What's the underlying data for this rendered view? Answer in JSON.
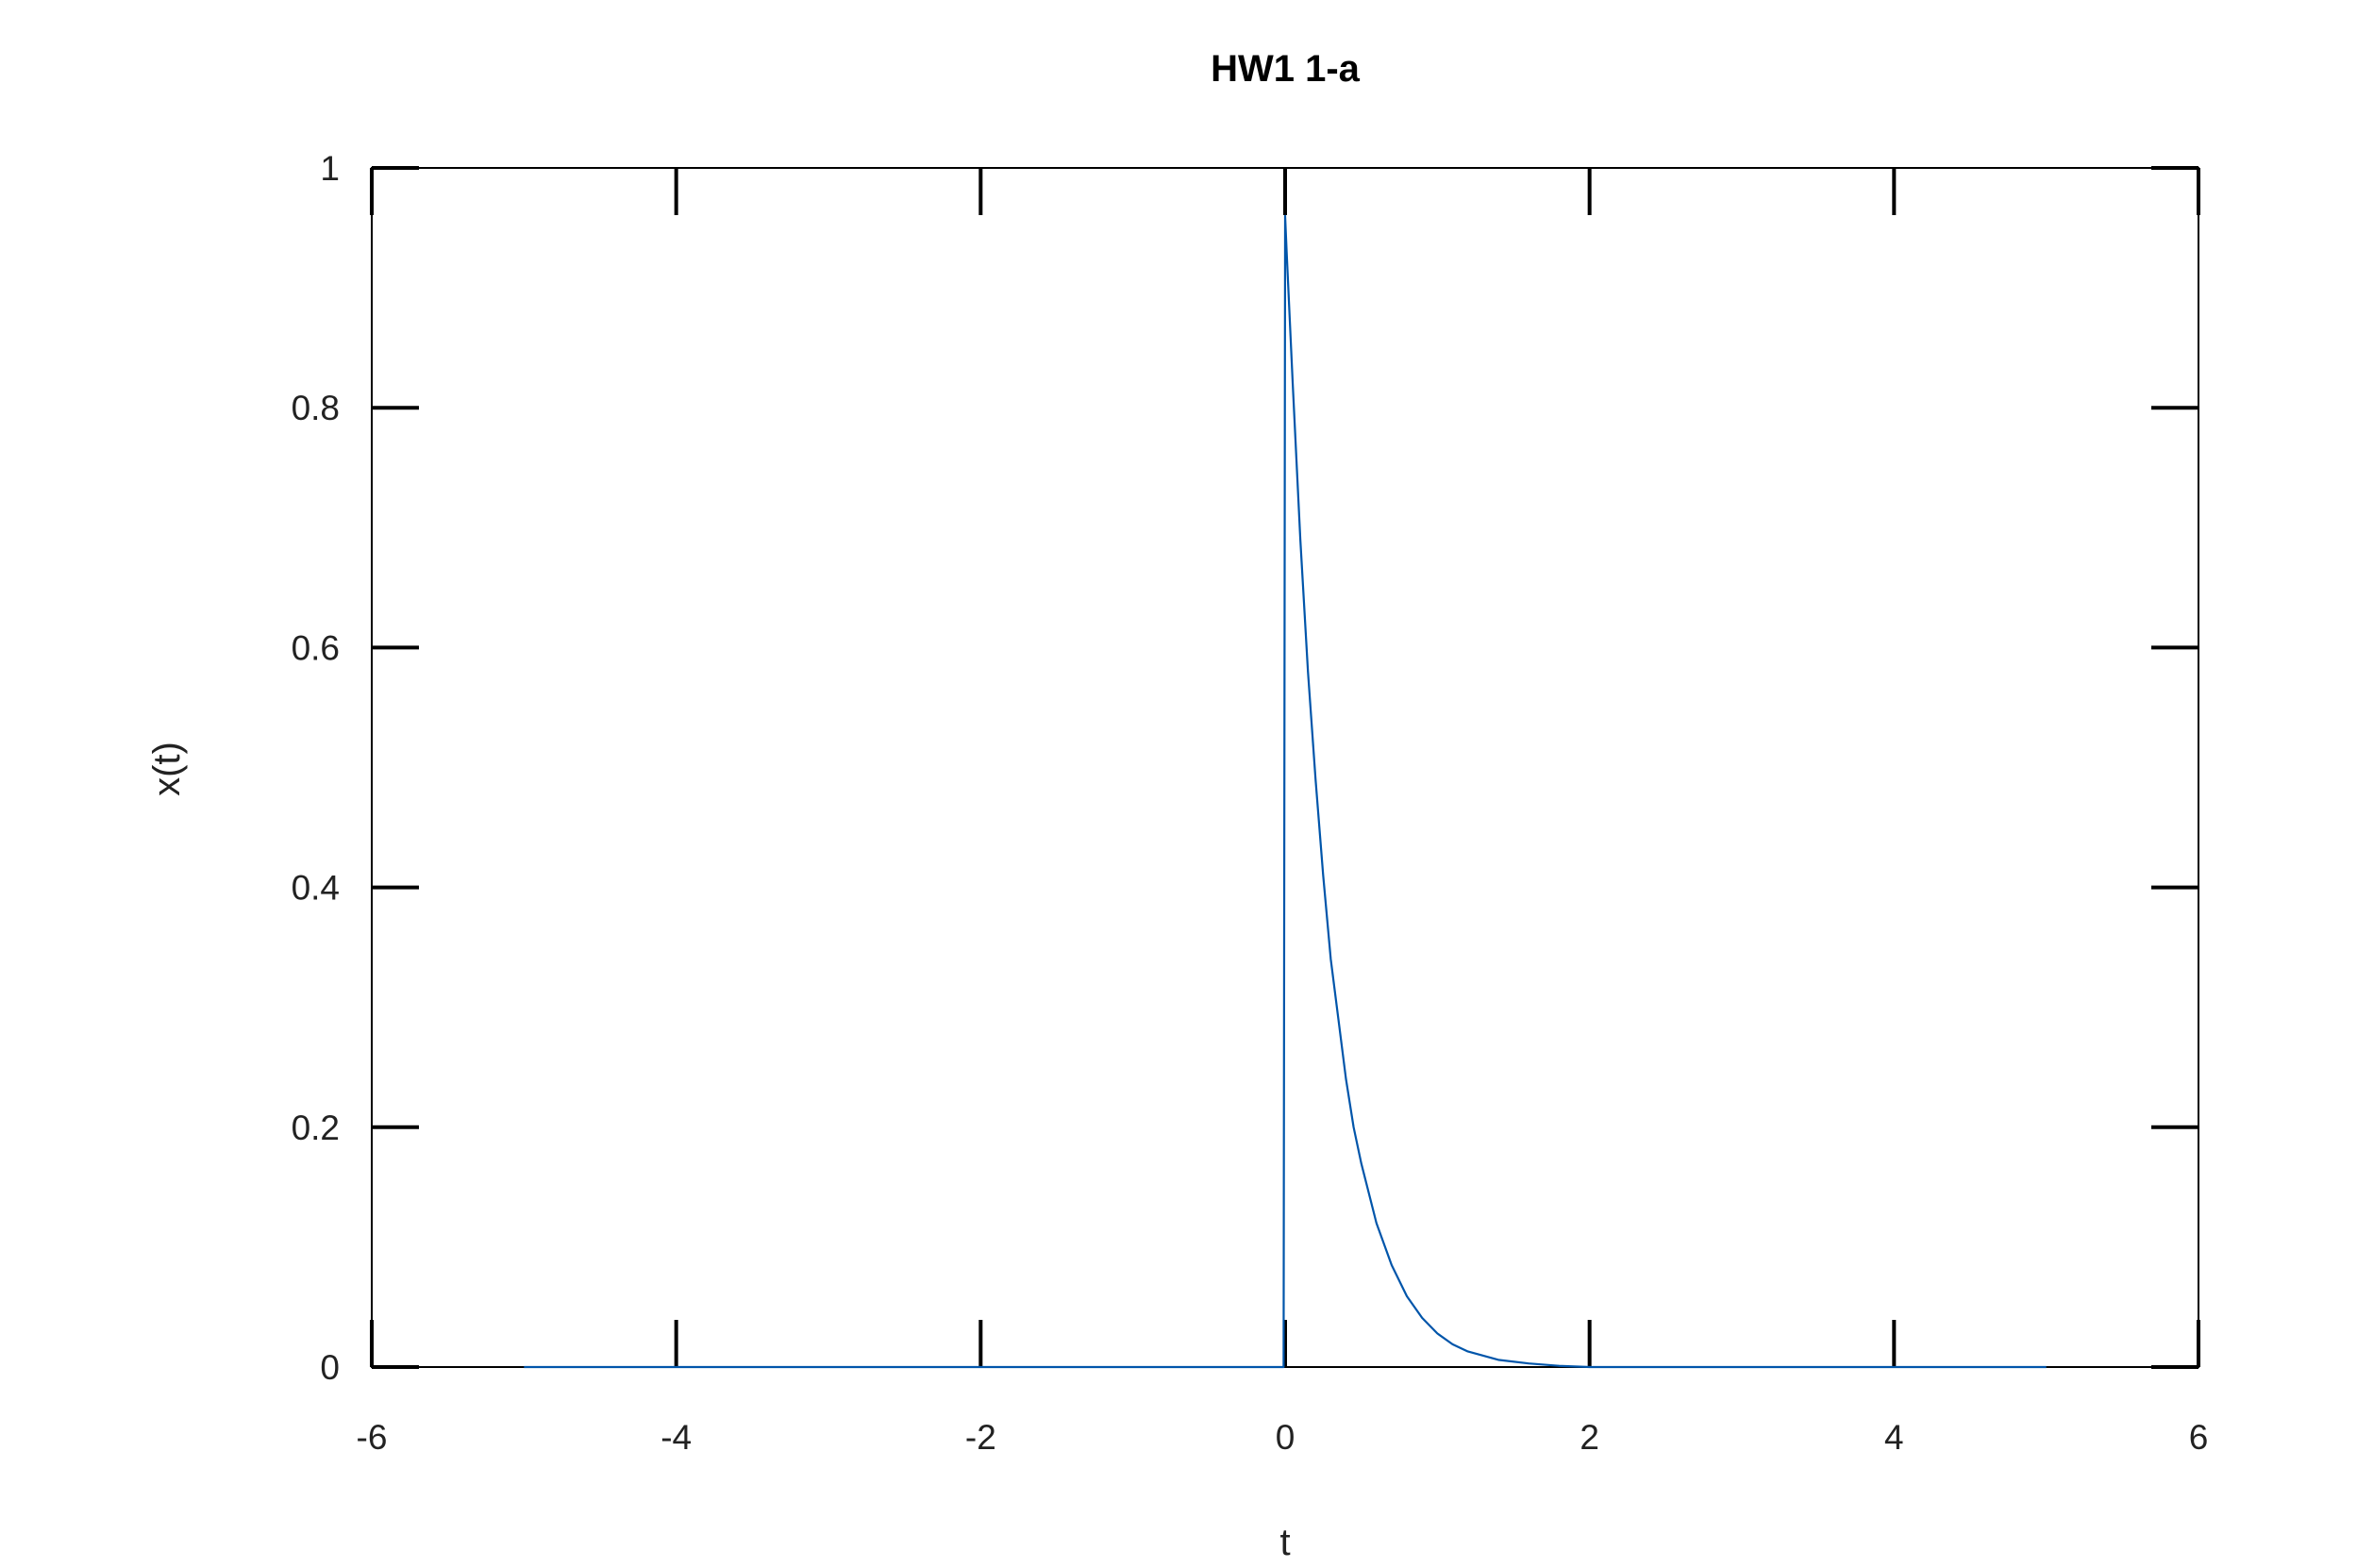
{
  "chart_data": {
    "type": "line",
    "title": "HW1 1-a",
    "xlabel": "t",
    "ylabel": "x(t)",
    "xlim": [
      -6,
      6
    ],
    "ylim": [
      0,
      1
    ],
    "xticks": [
      -6,
      -4,
      -2,
      0,
      2,
      4,
      6
    ],
    "xtick_labels": [
      "-6",
      "-4",
      "-2",
      "0",
      "2",
      "4",
      "6"
    ],
    "yticks": [
      0,
      0.2,
      0.4,
      0.6,
      0.8,
      1
    ],
    "ytick_labels": [
      "0",
      "0.2",
      "0.4",
      "0.6",
      "0.8",
      "1"
    ],
    "grid": false,
    "legend": "none",
    "series": [
      {
        "color": "#0055aa",
        "x": [
          -5,
          -4,
          -3,
          -2,
          -1,
          -0.01,
          0,
          0.01,
          0.05,
          0.1,
          0.15,
          0.2,
          0.25,
          0.3,
          0.35,
          0.4,
          0.45,
          0.5,
          0.6,
          0.7,
          0.8,
          0.9,
          1.0,
          1.1,
          1.2,
          1.4,
          1.6,
          1.8,
          2,
          2.5,
          3,
          4,
          5
        ],
        "y": [
          0,
          0,
          0,
          0,
          0,
          0,
          0.96,
          0.93,
          0.82,
          0.69,
          0.58,
          0.49,
          0.41,
          0.34,
          0.29,
          0.24,
          0.2,
          0.17,
          0.12,
          0.085,
          0.059,
          0.041,
          0.028,
          0.019,
          0.013,
          0.006,
          0.003,
          0.001,
          0,
          0,
          0,
          0,
          0
        ]
      }
    ]
  }
}
